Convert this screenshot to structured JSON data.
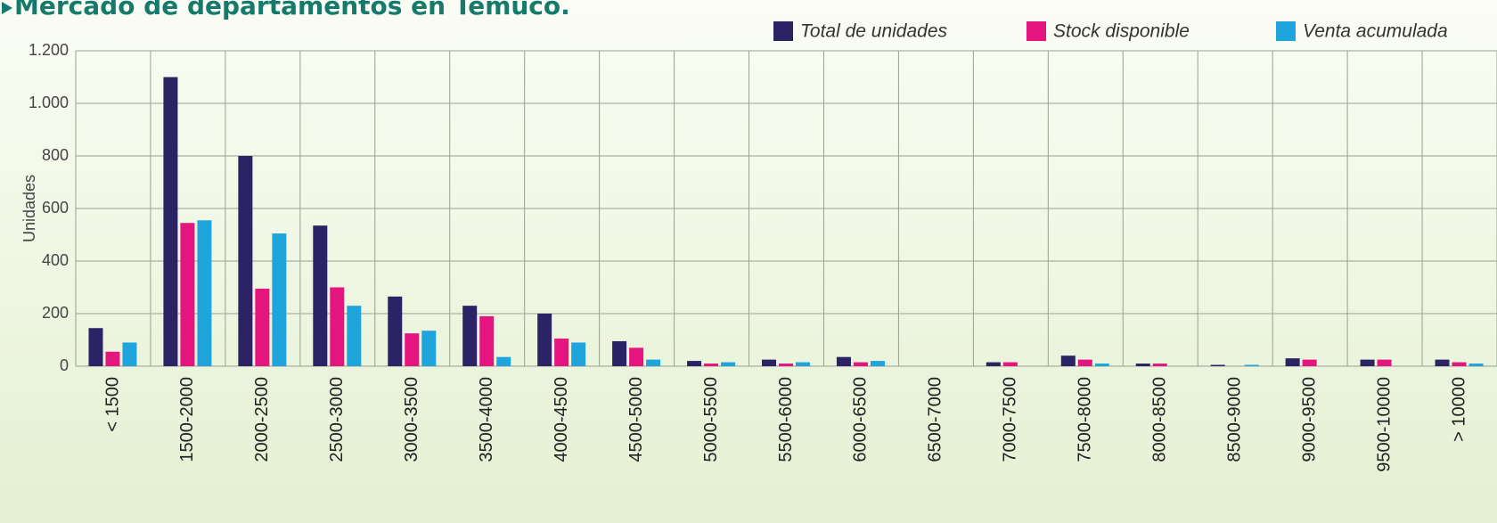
{
  "chart_data": {
    "type": "bar",
    "title": "Mercado de departamentos en Temuco.",
    "y_label": "Unidades",
    "categories": [
      "< 1500",
      "1500-2000",
      "2000-2500",
      "2500-3000",
      "3000-3500",
      "3500-4000",
      "4000-4500",
      "4500-5000",
      "5000-5500",
      "5500-6000",
      "6000-6500",
      "6500-7000",
      "7000-7500",
      "7500-8000",
      "8000-8500",
      "8500-9000",
      "9000-9500",
      "9500-10000",
      "> 10000"
    ],
    "series": [
      {
        "name": "Total de unidades",
        "color": "#2b2363",
        "values": [
          145,
          1100,
          800,
          535,
          265,
          230,
          200,
          95,
          20,
          25,
          35,
          0,
          15,
          40,
          10,
          5,
          30,
          25,
          25
        ]
      },
      {
        "name": "Stock disponible",
        "color": "#e5157f",
        "values": [
          55,
          545,
          295,
          300,
          125,
          190,
          105,
          70,
          10,
          10,
          15,
          0,
          15,
          25,
          10,
          0,
          25,
          25,
          15
        ]
      },
      {
        "name": "Venta acumulada",
        "color": "#1fa4dc",
        "values": [
          90,
          555,
          505,
          230,
          135,
          35,
          90,
          25,
          15,
          15,
          20,
          0,
          0,
          10,
          0,
          5,
          0,
          0,
          10
        ]
      }
    ],
    "ylim": [
      0,
      1200
    ],
    "yticks": [
      0,
      200,
      400,
      600,
      800,
      {
        "value": 1000,
        "label": "1.000"
      },
      {
        "value": 1200,
        "label": "1.200"
      }
    ],
    "grid": true
  }
}
